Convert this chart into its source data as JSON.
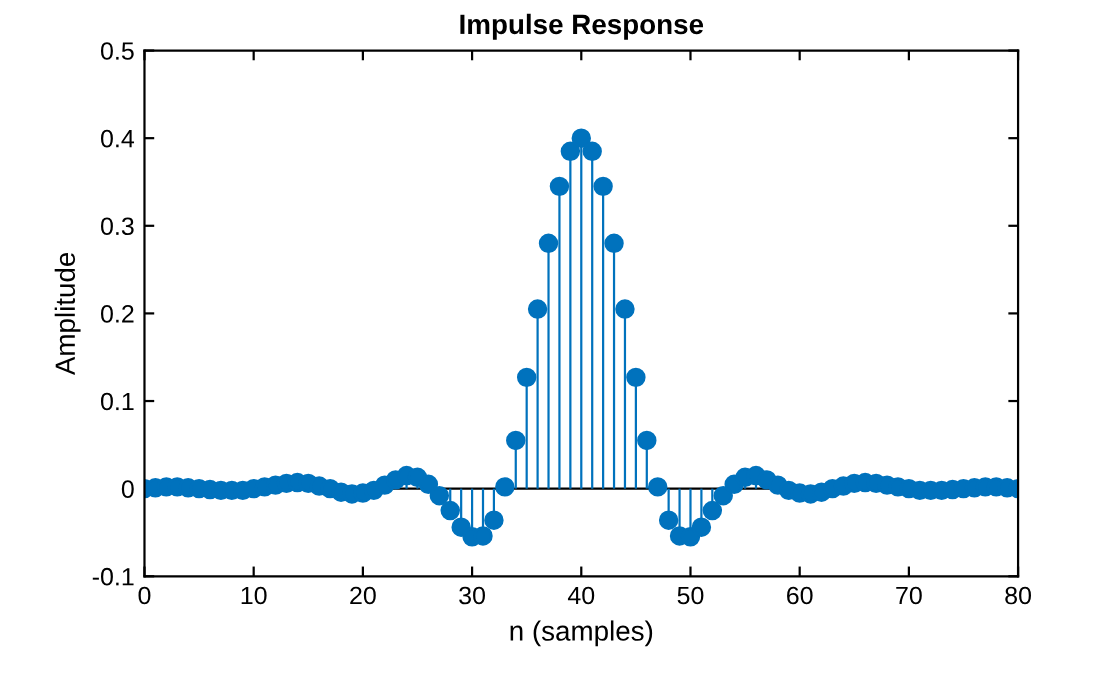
{
  "chart_data": {
    "type": "lollipop",
    "title": "Impulse Response",
    "xlabel": "n (samples)",
    "ylabel": "Amplitude",
    "x": [
      0,
      1,
      2,
      3,
      4,
      5,
      6,
      7,
      8,
      9,
      10,
      11,
      12,
      13,
      14,
      15,
      16,
      17,
      18,
      19,
      20,
      21,
      22,
      23,
      24,
      25,
      26,
      27,
      28,
      29,
      30,
      31,
      32,
      33,
      34,
      35,
      36,
      37,
      38,
      39,
      40,
      41,
      42,
      43,
      44,
      45,
      46,
      47,
      48,
      49,
      50,
      51,
      52,
      53,
      54,
      55,
      56,
      57,
      58,
      59,
      60,
      61,
      62,
      63,
      64,
      65,
      66,
      67,
      68,
      69,
      70,
      71,
      72,
      73,
      74,
      75,
      76,
      77,
      78,
      79,
      80
    ],
    "series": [
      {
        "color": "#0072bd",
        "values": [
          0,
          0.001,
          0.002,
          0.002,
          0.001,
          0,
          -0.001,
          -0.002,
          -0.002,
          -0.002,
          0,
          0.002,
          0.004,
          0.006,
          0.007,
          0.006,
          0.003,
          0,
          -0.004,
          -0.006,
          -0.005,
          -0.002,
          0.004,
          0.01,
          0.015,
          0.013,
          0.005,
          -0.008,
          -0.025,
          -0.044,
          -0.055,
          -0.054,
          -0.036,
          0.002,
          0.055,
          0.127,
          0.205,
          0.28,
          0.345,
          0.385,
          0.4,
          0.385,
          0.345,
          0.28,
          0.205,
          0.127,
          0.055,
          0.002,
          -0.036,
          -0.054,
          -0.055,
          -0.044,
          -0.025,
          -0.008,
          0.005,
          0.013,
          0.015,
          0.01,
          0.004,
          -0.002,
          -0.005,
          -0.006,
          -0.004,
          0,
          0.003,
          0.006,
          0.007,
          0.006,
          0.004,
          0.002,
          0,
          -0.002,
          -0.002,
          -0.002,
          -0.001,
          0,
          0.001,
          0.002,
          0.002,
          0.001,
          0
        ]
      }
    ],
    "xlim": [
      0,
      80
    ],
    "xticks": [
      0,
      10,
      20,
      30,
      40,
      50,
      60,
      70,
      80
    ],
    "ylim": [
      -0.1,
      0.5
    ],
    "yticks": [
      -0.1,
      0,
      0.1,
      0.2,
      0.3,
      0.4,
      0.5
    ],
    "ref_lines": [
      {
        "axis": "y",
        "value": 0,
        "color": "#000000"
      }
    ],
    "marker": "circle",
    "grid": false,
    "legend": false
  }
}
